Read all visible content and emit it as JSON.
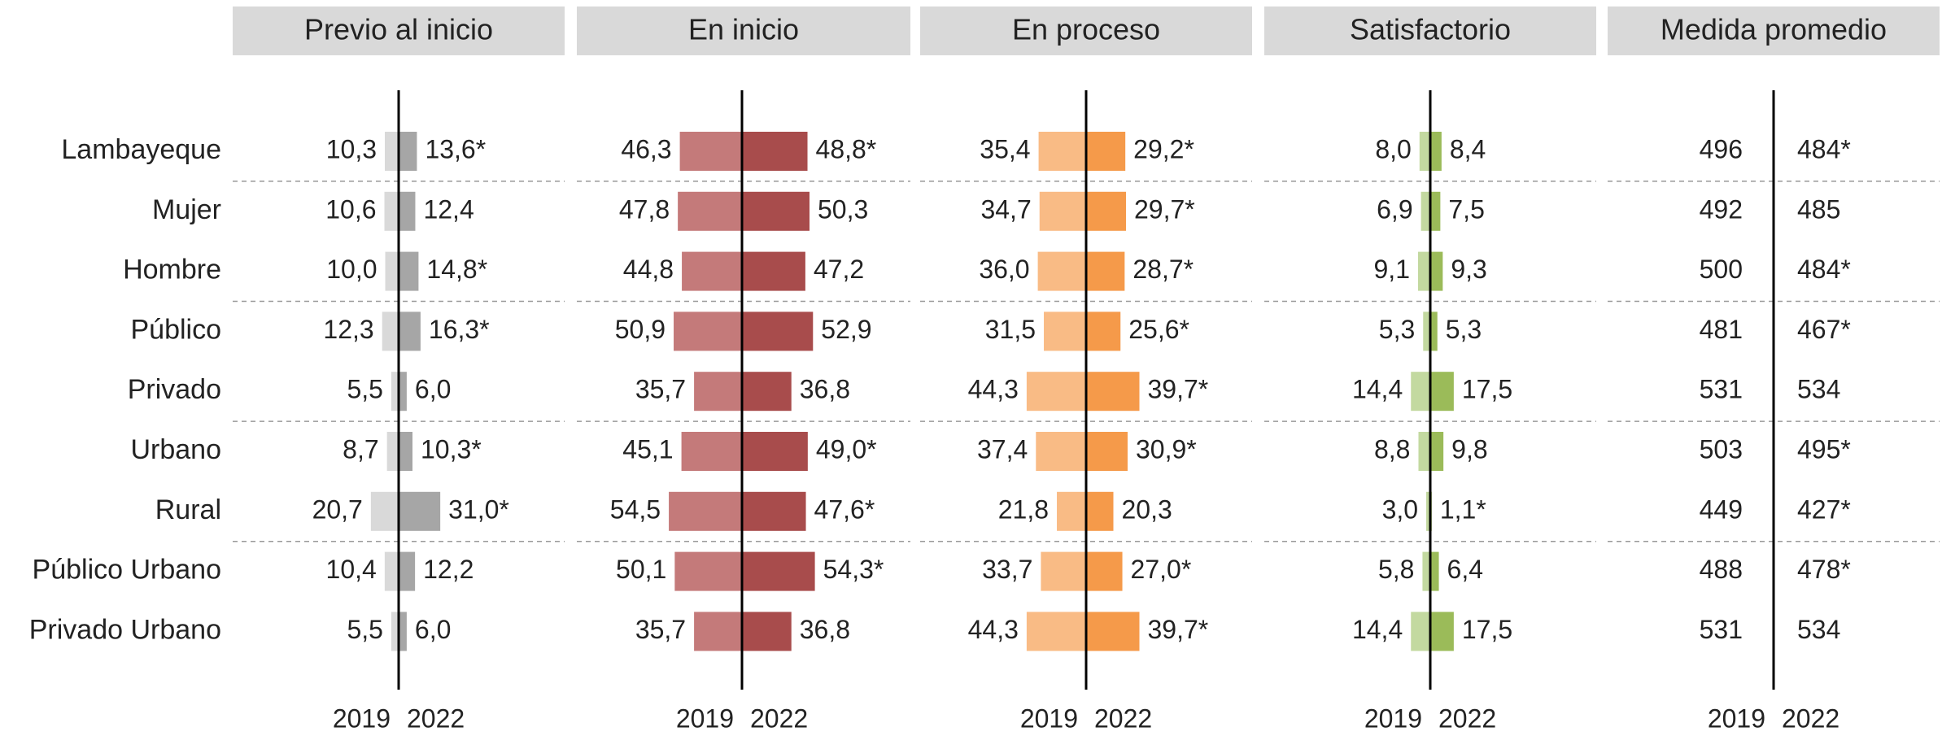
{
  "chart_data": {
    "type": "diverging_bar",
    "categories": [
      "Lambayeque",
      "Mujer",
      "Hombre",
      "Público",
      "Privado",
      "Urbano",
      "Rural",
      "Público Urbano",
      "Privado Urbano"
    ],
    "panels": [
      {
        "type": "bar",
        "title": "Previo al inicio",
        "series": [
          {
            "name": "2019",
            "color": "#d9d9d9",
            "values": [
              10.3,
              10.6,
              10.0,
              12.3,
              5.5,
              8.7,
              20.7,
              10.4,
              5.5
            ],
            "value_labels": [
              "10,3",
              "10,6",
              "10,0",
              "12,3",
              "5,5",
              "8,7",
              "20,7",
              "10,4",
              "5,5"
            ]
          },
          {
            "name": "2022",
            "color": "#a6a6a6",
            "values": [
              13.6,
              12.4,
              14.8,
              16.3,
              6.0,
              10.3,
              31.0,
              12.2,
              6.0
            ],
            "value_labels": [
              "13,6*",
              "12,4",
              "14,8*",
              "16,3*",
              "6,0",
              "10,3*",
              "31,0*",
              "12,2",
              "6,0"
            ]
          }
        ]
      },
      {
        "type": "bar",
        "title": "En inicio",
        "series": [
          {
            "name": "2019",
            "color": "#c47a7a",
            "values": [
              46.3,
              47.8,
              44.8,
              50.9,
              35.7,
              45.1,
              54.5,
              50.1,
              35.7
            ],
            "value_labels": [
              "46,3",
              "47,8",
              "44,8",
              "50,9",
              "35,7",
              "45,1",
              "54,5",
              "50,1",
              "35,7"
            ]
          },
          {
            "name": "2022",
            "color": "#a84c4c",
            "values": [
              48.8,
              50.3,
              47.2,
              52.9,
              36.8,
              49.0,
              47.6,
              54.3,
              36.8
            ],
            "value_labels": [
              "48,8*",
              "50,3",
              "47,2",
              "52,9",
              "36,8",
              "49,0*",
              "47,6*",
              "54,3*",
              "36,8"
            ]
          }
        ]
      },
      {
        "type": "bar",
        "title": "En proceso",
        "series": [
          {
            "name": "2019",
            "color": "#f9bb85",
            "values": [
              35.4,
              34.7,
              36.0,
              31.5,
              44.3,
              37.4,
              21.8,
              33.7,
              44.3
            ],
            "value_labels": [
              "35,4",
              "34,7",
              "36,0",
              "31,5",
              "44,3",
              "37,4",
              "21,8",
              "33,7",
              "44,3"
            ]
          },
          {
            "name": "2022",
            "color": "#f59a4a",
            "values": [
              29.2,
              29.7,
              28.7,
              25.6,
              39.7,
              30.9,
              20.3,
              27.0,
              39.7
            ],
            "value_labels": [
              "29,2*",
              "29,7*",
              "28,7*",
              "25,6*",
              "39,7*",
              "30,9*",
              "20,3",
              "27,0*",
              "39,7*"
            ]
          }
        ]
      },
      {
        "type": "bar",
        "title": "Satisfactorio",
        "series": [
          {
            "name": "2019",
            "color": "#c3d9a0",
            "values": [
              8.0,
              6.9,
              9.1,
              5.3,
              14.4,
              8.8,
              3.0,
              5.8,
              14.4
            ],
            "value_labels": [
              "8,0",
              "6,9",
              "9,1",
              "5,3",
              "14,4",
              "8,8",
              "3,0",
              "5,8",
              "14,4"
            ]
          },
          {
            "name": "2022",
            "color": "#9bbb59",
            "values": [
              8.4,
              7.5,
              9.3,
              5.3,
              17.5,
              9.8,
              1.1,
              6.4,
              17.5
            ],
            "value_labels": [
              "8,4",
              "7,5",
              "9,3",
              "5,3",
              "17,5",
              "9,8",
              "1,1*",
              "6,4",
              "17,5"
            ]
          }
        ]
      },
      {
        "type": "text",
        "title": "Medida promedio",
        "series": [
          {
            "name": "2019",
            "values": [
              496,
              492,
              500,
              481,
              531,
              503,
              449,
              488,
              531
            ]
          },
          {
            "name": "2022",
            "values": [
              484,
              485,
              484,
              467,
              534,
              495,
              427,
              478,
              534
            ],
            "value_labels": [
              "484*",
              "485",
              "484*",
              "467*",
              "534",
              "495*",
              "427*",
              "478*",
              "534"
            ]
          }
        ]
      }
    ]
  }
}
